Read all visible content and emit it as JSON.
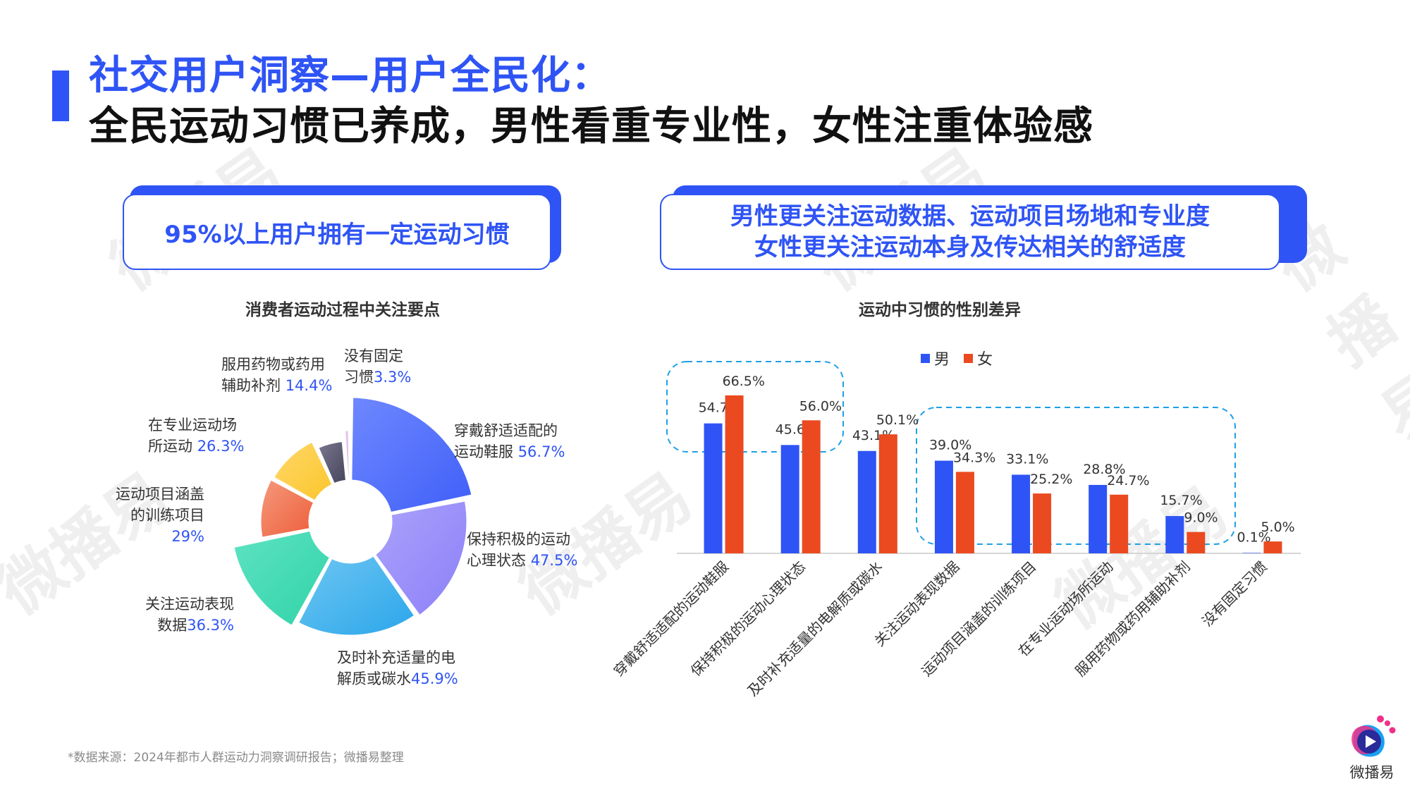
{
  "header": {
    "title_line1": "社交用户洞察—用户全民化：",
    "title_line2": "全民运动习惯已养成，男性看重专业性，女性注重体验感"
  },
  "left_panel": {
    "callout": "95%以上用户拥有一定运动习惯",
    "chart_title": "消费者运动过程中关注要点",
    "labels": [
      {
        "line1": "穿戴舒适适配的",
        "line2": "运动鞋服 ",
        "pct": "56.7%"
      },
      {
        "line1": "保持积极的运动",
        "line2": "心理状态 ",
        "pct": "47.5%"
      },
      {
        "line1": "及时补充适量的电",
        "line2": "解质或碳水",
        "pct": "45.9%"
      },
      {
        "line1": "关注运动表现",
        "line2": "数据",
        "pct": "36.3%"
      },
      {
        "line1": "运动项目涵盖",
        "line2": "的训练项目",
        "pct": "29%"
      },
      {
        "line1": "在专业运动场",
        "line2": "所运动 ",
        "pct": "26.3%"
      },
      {
        "line1": "服用药物或药用",
        "line2": "辅助补剂 ",
        "pct": "14.4%"
      },
      {
        "line1": "没有固定",
        "line2": "习惯",
        "pct": "3.3%"
      }
    ]
  },
  "right_panel": {
    "callout_line1": "男性更关注运动数据、运动项目场地和专业度",
    "callout_line2": "女性更关注运动本身及传达相关的舒适度",
    "chart_title": "运动中习惯的性别差异",
    "legend": [
      {
        "label": "男",
        "color": "#2f54f5"
      },
      {
        "label": "女",
        "color": "#eb4a20"
      }
    ]
  },
  "footer": {
    "source": "*数据来源：2024年都市人群运动力洞察调研报告；微播易整理"
  },
  "logo": {
    "text": "微播易"
  },
  "watermark": "微播易",
  "colors": {
    "accent": "#2f54f5",
    "male": "#2f54f5",
    "female": "#eb4a20",
    "highlight_dash": "#1ea0e6"
  },
  "chart_data": [
    {
      "type": "pie",
      "subtype": "donut-rose",
      "title": "消费者运动过程中关注要点",
      "categories": [
        "穿戴舒适适配的运动鞋服",
        "保持积极的运动心理状态",
        "及时补充适量的电解质或碳水",
        "关注运动表现数据",
        "运动项目涵盖的训练项目",
        "在专业运动场所运动",
        "服用药物或药用辅助补剂",
        "没有固定习惯"
      ],
      "values": [
        56.7,
        47.5,
        45.9,
        36.3,
        29,
        26.3,
        14.4,
        3.3
      ],
      "colors": [
        "#3f5ff8",
        "#8c80f8",
        "#2aa6ea",
        "#30d3a8",
        "#ee5d3a",
        "#fbc52a",
        "#45445a",
        "#dcb7e6"
      ],
      "unit": "%"
    },
    {
      "type": "bar",
      "title": "运动中习惯的性别差异",
      "categories": [
        "穿戴舒适适配的运动鞋服",
        "保持积极的运动心理状态",
        "及时补充适量的电解质或碳水",
        "关注运动表现数据",
        "运动项目涵盖的训练项目",
        "在专业运动场所运动",
        "服用药物或药用辅助补剂",
        "没有固定习惯"
      ],
      "series": [
        {
          "name": "男",
          "values": [
            54.7,
            45.6,
            43.1,
            39.0,
            33.1,
            28.8,
            15.7,
            0.1
          ],
          "labels": [
            "54.7%",
            "45.6%",
            "43.1%",
            "39.0%",
            "33.1%",
            "28.8%",
            "15.7%",
            "0.1%"
          ]
        },
        {
          "name": "女",
          "values": [
            66.5,
            56.0,
            50.1,
            34.3,
            25.2,
            24.7,
            9.0,
            5.0
          ],
          "labels": [
            "66.5%",
            "56.0%",
            "50.1%",
            "34.3%",
            "25.2%",
            "24.7%",
            "9.0%",
            "5.0%"
          ]
        }
      ],
      "xlabel": "",
      "ylabel": "",
      "ylim": [
        0,
        70
      ],
      "grid": false,
      "legend_position": "top",
      "annotations": [
        "dashed box around categories 1-2 (女 higher)",
        "dashed box around categories 4-7 (男 higher)"
      ]
    }
  ]
}
